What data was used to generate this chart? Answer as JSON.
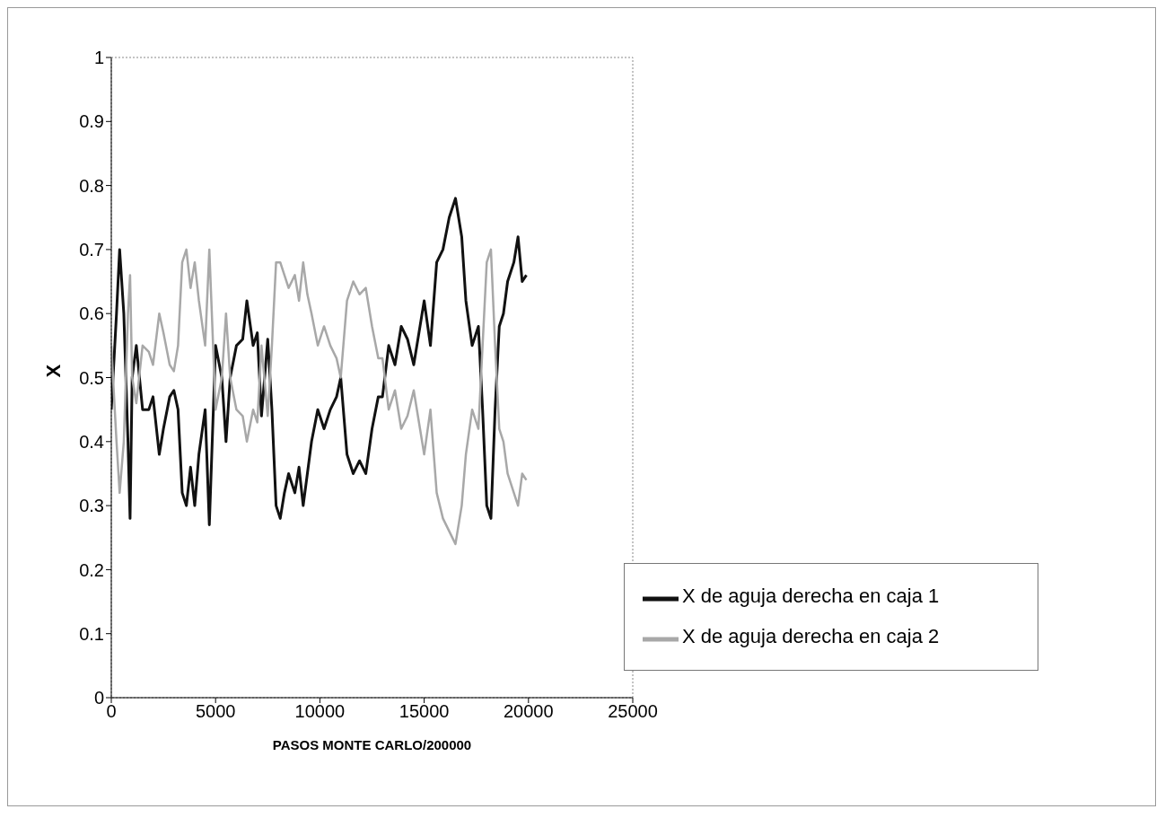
{
  "chart_data": {
    "type": "line",
    "xlabel": "PASOS MONTE CARLO/200000",
    "ylabel": "X",
    "x": [
      0,
      250,
      400,
      600,
      800,
      900,
      1000,
      1200,
      1500,
      1800,
      2000,
      2300,
      2500,
      2800,
      3000,
      3200,
      3400,
      3600,
      3800,
      4000,
      4200,
      4500,
      4700,
      5000,
      5300,
      5500,
      5700,
      6000,
      6300,
      6500,
      6800,
      7000,
      7200,
      7500,
      7700,
      7900,
      8100,
      8300,
      8500,
      8800,
      9000,
      9200,
      9400,
      9600,
      9900,
      10200,
      10500,
      10800,
      11000,
      11300,
      11600,
      11900,
      12200,
      12500,
      12800,
      13000,
      13300,
      13600,
      13900,
      14200,
      14500,
      14800,
      15000,
      15300,
      15600,
      15900,
      16200,
      16500,
      16800,
      17000,
      17300,
      17600,
      17800,
      18000,
      18200,
      18400,
      18600,
      18800,
      19000,
      19300,
      19500,
      19700,
      19900
    ],
    "series": [
      {
        "name": "X de aguja derecha en caja 1",
        "color": "#111111",
        "values": [
          0.45,
          0.6,
          0.7,
          0.6,
          0.4,
          0.28,
          0.5,
          0.55,
          0.45,
          0.45,
          0.47,
          0.38,
          0.42,
          0.47,
          0.48,
          0.45,
          0.32,
          0.3,
          0.36,
          0.3,
          0.38,
          0.45,
          0.27,
          0.55,
          0.5,
          0.4,
          0.5,
          0.55,
          0.56,
          0.62,
          0.55,
          0.57,
          0.44,
          0.56,
          0.45,
          0.3,
          0.28,
          0.32,
          0.35,
          0.32,
          0.36,
          0.3,
          0.35,
          0.4,
          0.45,
          0.42,
          0.45,
          0.47,
          0.5,
          0.38,
          0.35,
          0.37,
          0.35,
          0.42,
          0.47,
          0.47,
          0.55,
          0.52,
          0.58,
          0.56,
          0.52,
          0.58,
          0.62,
          0.55,
          0.68,
          0.7,
          0.75,
          0.78,
          0.72,
          0.62,
          0.55,
          0.58,
          0.45,
          0.3,
          0.28,
          0.45,
          0.58,
          0.6,
          0.65,
          0.68,
          0.72,
          0.65,
          0.66
        ]
      },
      {
        "name": "X de aguja derecha en caja 2",
        "color": "#a8a8a8",
        "values": [
          0.55,
          0.4,
          0.32,
          0.4,
          0.6,
          0.66,
          0.5,
          0.46,
          0.55,
          0.54,
          0.52,
          0.6,
          0.57,
          0.52,
          0.51,
          0.55,
          0.68,
          0.7,
          0.64,
          0.68,
          0.62,
          0.55,
          0.7,
          0.45,
          0.5,
          0.6,
          0.5,
          0.45,
          0.44,
          0.4,
          0.45,
          0.43,
          0.55,
          0.44,
          0.55,
          0.68,
          0.68,
          0.66,
          0.64,
          0.66,
          0.62,
          0.68,
          0.63,
          0.6,
          0.55,
          0.58,
          0.55,
          0.53,
          0.5,
          0.62,
          0.65,
          0.63,
          0.64,
          0.58,
          0.53,
          0.53,
          0.45,
          0.48,
          0.42,
          0.44,
          0.48,
          0.42,
          0.38,
          0.45,
          0.32,
          0.28,
          0.26,
          0.24,
          0.3,
          0.38,
          0.45,
          0.42,
          0.55,
          0.68,
          0.7,
          0.55,
          0.42,
          0.4,
          0.35,
          0.32,
          0.3,
          0.35,
          0.34
        ]
      }
    ],
    "xlim": [
      0,
      25000
    ],
    "xticks": [
      0,
      5000,
      10000,
      15000,
      20000,
      25000
    ],
    "ylim": [
      0,
      1
    ],
    "yticks": [
      0,
      0.1,
      0.2,
      0.3,
      0.4,
      0.5,
      0.6,
      0.7,
      0.8,
      0.9,
      1
    ],
    "grid": false,
    "legend": "bottom right",
    "marker": "none",
    "line_style": "solid"
  }
}
